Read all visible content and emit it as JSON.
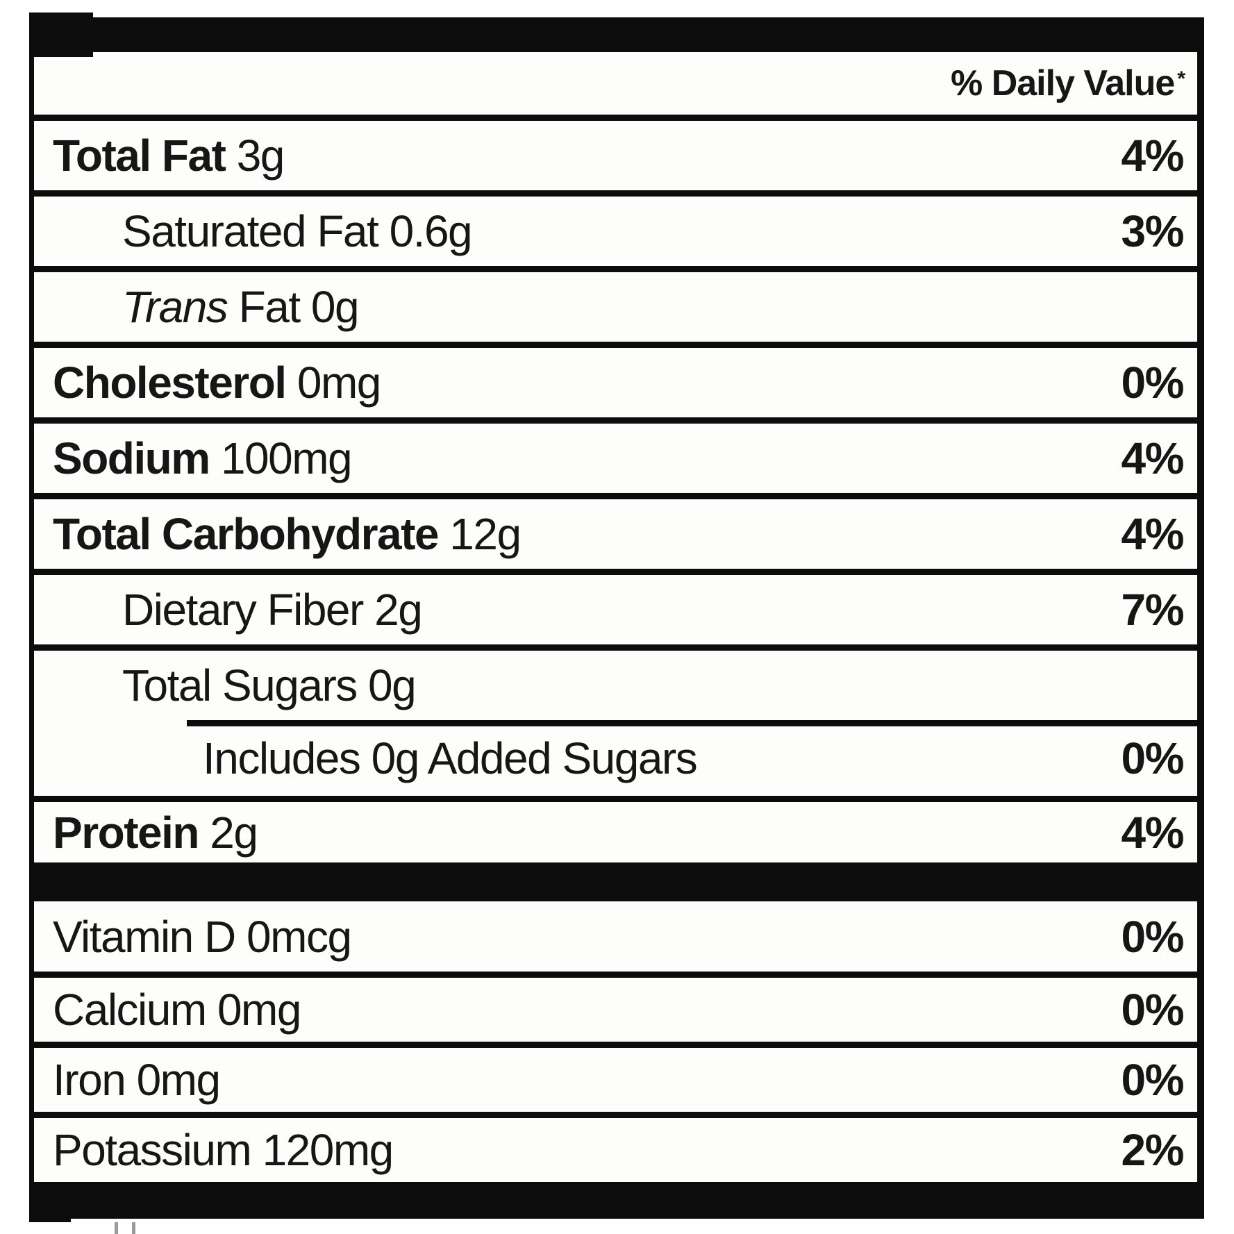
{
  "label": {
    "header": {
      "daily_value_label": "% Daily Value",
      "footnote_symbol": "*"
    },
    "rows": [
      {
        "name": "Total Fat",
        "amount": "3g",
        "dv": "4%",
        "indent": 0,
        "bold": true
      },
      {
        "name": "Saturated Fat",
        "amount": "0.6g",
        "dv": "3%",
        "indent": 1,
        "bold": false
      },
      {
        "name": "Fat",
        "italic_prefix": "Trans",
        "amount": "0g",
        "dv": "",
        "indent": 1,
        "bold": false
      },
      {
        "name": "Cholesterol",
        "amount": "0mg",
        "dv": "0%",
        "indent": 0,
        "bold": true
      },
      {
        "name": "Sodium",
        "amount": "100mg",
        "dv": "4%",
        "indent": 0,
        "bold": true
      },
      {
        "name": "Total Carbohydrate",
        "amount": "12g",
        "dv": "4%",
        "indent": 0,
        "bold": true
      },
      {
        "name": "Dietary Fiber",
        "amount": "2g",
        "dv": "7%",
        "indent": 1,
        "bold": false
      },
      {
        "name": "Total Sugars",
        "amount": "0g",
        "dv": "",
        "indent": 1,
        "bold": false
      },
      {
        "name": "Includes 0g Added Sugars",
        "amount": "",
        "dv": "0%",
        "indent": 2,
        "bold": false,
        "sep_indent": true
      },
      {
        "name": "Protein",
        "amount": "2g",
        "dv": "4%",
        "indent": 0,
        "bold": true
      }
    ],
    "micronutrients": [
      {
        "name": "Vitamin D",
        "amount": "0mcg",
        "dv": "0%"
      },
      {
        "name": "Calcium",
        "amount": "0mg",
        "dv": "0%"
      },
      {
        "name": "Iron",
        "amount": "0mg",
        "dv": "0%"
      },
      {
        "name": "Potassium",
        "amount": "120mg",
        "dv": "2%"
      }
    ],
    "colors": {
      "ink": "#161616",
      "rule": "#0c0c0c",
      "background": "#fdfdfc"
    }
  }
}
